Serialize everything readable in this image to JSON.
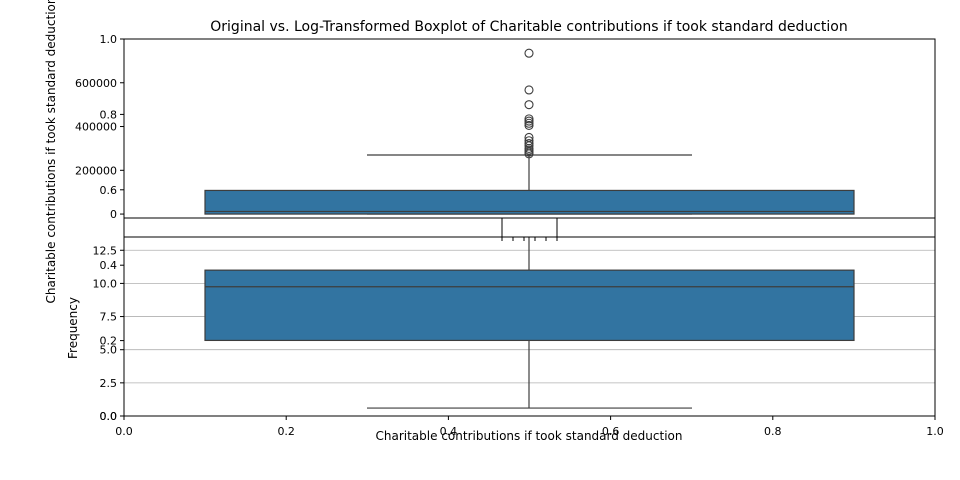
{
  "chart_data": {
    "title": "Original vs. Log-Transformed Boxplot of Charitable contributions if took standard deduction",
    "outer_axes": {
      "xlabel": "Charitable contributions if took standard deduction",
      "ylabel": "Frequency",
      "xlim": [
        0,
        1
      ],
      "ylim": [
        0,
        1
      ],
      "xticks": [
        "0.0",
        "0.2",
        "0.4",
        "0.6",
        "0.8",
        "1.0"
      ],
      "yticks": [
        "0.0",
        "0.2",
        "0.4",
        "0.6",
        "0.8",
        "1.0"
      ]
    },
    "inner_axes": {
      "xticks": [
        "0.0",
        "0.2",
        "0.4",
        "0.6",
        "0.8",
        "1.0"
      ]
    },
    "charts": [
      {
        "type": "box",
        "panel": "top",
        "ylabel": "Charitable contributions if took standard deduction",
        "ylim": [
          -18000,
          800000
        ],
        "yticks": [
          0,
          200000,
          400000,
          600000
        ],
        "ytick_labels": [
          "0",
          "200000",
          "400000",
          "600000"
        ],
        "box": {
          "whislo": 0,
          "q1": 0,
          "med": 12000,
          "q3": 108000,
          "whishi": 270000
        },
        "outliers": [
          275000,
          283000,
          292000,
          300000,
          312000,
          322000,
          335000,
          350000,
          405000,
          415000,
          425000,
          435000,
          500000,
          567000,
          735000
        ],
        "color": "#3274a1"
      },
      {
        "type": "box",
        "panel": "bottom",
        "ylim": [
          0,
          13.5
        ],
        "yticks": [
          0,
          2.5,
          5,
          7.5,
          10,
          12.5
        ],
        "ytick_labels": [
          "0.0",
          "2.5",
          "5.0",
          "7.5",
          "10.0",
          "12.5"
        ],
        "grid": true,
        "box": {
          "whislo": 0.6,
          "q1": 5.7,
          "med": 9.75,
          "q3": 11.0,
          "whishi": 15.0
        },
        "outliers": [],
        "color": "#3274a1"
      }
    ]
  }
}
